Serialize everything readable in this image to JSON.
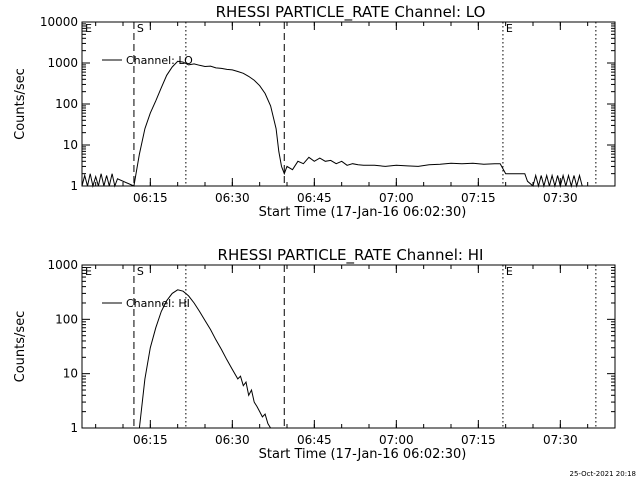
{
  "chart_data": [
    {
      "type": "line",
      "title": "RHESSI PARTICLE_RATE Channel: LO",
      "xlabel": "Start Time (17-Jan-16 06:02:30)",
      "ylabel": "Counts/sec",
      "y_scale": "log",
      "ylim": [
        1,
        10000
      ],
      "xlim": [
        "06:02:30",
        "07:40:00"
      ],
      "x_ticks": [
        "06:15",
        "06:30",
        "06:45",
        "07:00",
        "07:15",
        "07:30"
      ],
      "y_ticks": [
        "1",
        "10",
        "100",
        "1000",
        "10000"
      ],
      "legend": {
        "label": "Channel: LO",
        "placement": "top-left"
      },
      "markers": [
        {
          "label": "S",
          "time": "06:12:00",
          "style": "dashed"
        },
        {
          "label": "",
          "time": "06:21:30",
          "style": "dotted"
        },
        {
          "label": "",
          "time": "06:39:30",
          "style": "dashed"
        },
        {
          "label": "E",
          "time": "07:19:30",
          "style": "dotted"
        },
        {
          "label": "",
          "time": "07:36:30",
          "style": "dotted"
        },
        {
          "label": "E",
          "time": "06:02:30",
          "style": "none"
        }
      ],
      "series": [
        {
          "name": "Channel: LO",
          "points": [
            [
              "06:02:30",
              1
            ],
            [
              "06:03:00",
              1.8
            ],
            [
              "06:03:30",
              1
            ],
            [
              "06:04:00",
              2
            ],
            [
              "06:04:30",
              1
            ],
            [
              "06:05:00",
              1.7
            ],
            [
              "06:05:30",
              1
            ],
            [
              "06:06:00",
              2
            ],
            [
              "06:06:30",
              1
            ],
            [
              "06:07:00",
              1.8
            ],
            [
              "06:07:30",
              1
            ],
            [
              "06:08:00",
              2
            ],
            [
              "06:08:30",
              1
            ],
            [
              "06:09:00",
              1.5
            ],
            [
              "06:12:00",
              1
            ],
            [
              "06:13:00",
              6
            ],
            [
              "06:14:00",
              25
            ],
            [
              "06:15:00",
              60
            ],
            [
              "06:16:00",
              120
            ],
            [
              "06:17:00",
              250
            ],
            [
              "06:18:00",
              500
            ],
            [
              "06:19:00",
              800
            ],
            [
              "06:20:00",
              1100
            ],
            [
              "06:21:00",
              1050
            ],
            [
              "06:22:00",
              900
            ],
            [
              "06:23:00",
              950
            ],
            [
              "06:24:00",
              880
            ],
            [
              "06:25:00",
              820
            ],
            [
              "06:26:00",
              840
            ],
            [
              "06:27:00",
              760
            ],
            [
              "06:28:00",
              740
            ],
            [
              "06:29:00",
              700
            ],
            [
              "06:30:00",
              680
            ],
            [
              "06:31:00",
              620
            ],
            [
              "06:32:00",
              560
            ],
            [
              "06:33:00",
              470
            ],
            [
              "06:34:00",
              380
            ],
            [
              "06:35:00",
              280
            ],
            [
              "06:36:00",
              180
            ],
            [
              "06:37:00",
              90
            ],
            [
              "06:38:00",
              25
            ],
            [
              "06:38:30",
              7
            ],
            [
              "06:39:00",
              3
            ],
            [
              "06:39:30",
              2
            ],
            [
              "06:40:00",
              3
            ],
            [
              "06:41:00",
              2.5
            ],
            [
              "06:42:00",
              4
            ],
            [
              "06:43:00",
              3.5
            ],
            [
              "06:44:00",
              5
            ],
            [
              "06:45:00",
              4
            ],
            [
              "06:46:00",
              4.8
            ],
            [
              "06:47:00",
              4
            ],
            [
              "06:48:00",
              4.2
            ],
            [
              "06:49:00",
              3.5
            ],
            [
              "06:50:00",
              4
            ],
            [
              "06:51:00",
              3.2
            ],
            [
              "06:52:00",
              3.5
            ],
            [
              "06:53:00",
              3.3
            ],
            [
              "06:54:00",
              3.2
            ],
            [
              "06:56:00",
              3.2
            ],
            [
              "06:58:00",
              3
            ],
            [
              "07:00:00",
              3.2
            ],
            [
              "07:02:00",
              3.1
            ],
            [
              "07:04:00",
              3
            ],
            [
              "07:06:00",
              3.3
            ],
            [
              "07:08:00",
              3.4
            ],
            [
              "07:10:00",
              3.6
            ],
            [
              "07:12:00",
              3.5
            ],
            [
              "07:14:00",
              3.6
            ],
            [
              "07:16:00",
              3.4
            ],
            [
              "07:18:00",
              3.5
            ],
            [
              "07:19:00",
              3.5
            ],
            [
              "07:20:00",
              2
            ],
            [
              "07:22:00",
              2
            ],
            [
              "07:23:30",
              2
            ],
            [
              "07:24:00",
              1.3
            ],
            [
              "07:25:00",
              1
            ],
            [
              "07:25:30",
              1.8
            ],
            [
              "07:26:00",
              1
            ],
            [
              "07:26:30",
              1.8
            ],
            [
              "07:27:00",
              1
            ],
            [
              "07:27:30",
              1.8
            ],
            [
              "07:28:00",
              1
            ],
            [
              "07:28:30",
              1.8
            ],
            [
              "07:29:00",
              1
            ],
            [
              "07:29:30",
              1.8
            ],
            [
              "07:30:00",
              1
            ],
            [
              "07:30:30",
              1.8
            ],
            [
              "07:31:00",
              1
            ],
            [
              "07:31:30",
              1.8
            ],
            [
              "07:32:00",
              1
            ],
            [
              "07:32:30",
              1.8
            ],
            [
              "07:33:00",
              1
            ],
            [
              "07:33:30",
              1.8
            ],
            [
              "07:34:00",
              1
            ]
          ]
        }
      ]
    },
    {
      "type": "line",
      "title": "RHESSI PARTICLE_RATE Channel: HI",
      "xlabel": "Start Time (17-Jan-16 06:02:30)",
      "ylabel": "Counts/sec",
      "y_scale": "log",
      "ylim": [
        1,
        1000
      ],
      "xlim": [
        "06:02:30",
        "07:40:00"
      ],
      "x_ticks": [
        "06:15",
        "06:30",
        "06:45",
        "07:00",
        "07:15",
        "07:30"
      ],
      "y_ticks": [
        "1",
        "10",
        "100",
        "1000"
      ],
      "legend": {
        "label": "Channel: HI",
        "placement": "top-left"
      },
      "markers": [
        {
          "label": "S",
          "time": "06:12:00",
          "style": "dashed"
        },
        {
          "label": "",
          "time": "06:21:30",
          "style": "dotted"
        },
        {
          "label": "",
          "time": "06:39:30",
          "style": "dashed"
        },
        {
          "label": "E",
          "time": "07:19:30",
          "style": "dotted"
        },
        {
          "label": "",
          "time": "07:36:30",
          "style": "dotted"
        },
        {
          "label": "E",
          "time": "06:02:30",
          "style": "none"
        }
      ],
      "series": [
        {
          "name": "Channel: HI",
          "points": [
            [
              "06:13:00",
              1
            ],
            [
              "06:14:00",
              8
            ],
            [
              "06:15:00",
              30
            ],
            [
              "06:16:00",
              70
            ],
            [
              "06:17:00",
              140
            ],
            [
              "06:18:00",
              220
            ],
            [
              "06:19:00",
              300
            ],
            [
              "06:20:00",
              350
            ],
            [
              "06:21:00",
              330
            ],
            [
              "06:22:00",
              270
            ],
            [
              "06:23:00",
              200
            ],
            [
              "06:24:00",
              140
            ],
            [
              "06:25:00",
              95
            ],
            [
              "06:26:00",
              65
            ],
            [
              "06:27:00",
              42
            ],
            [
              "06:28:00",
              28
            ],
            [
              "06:29:00",
              18
            ],
            [
              "06:30:00",
              12
            ],
            [
              "06:31:00",
              8
            ],
            [
              "06:31:30",
              9
            ],
            [
              "06:32:00",
              6
            ],
            [
              "06:32:30",
              7
            ],
            [
              "06:33:00",
              4
            ],
            [
              "06:33:30",
              5
            ],
            [
              "06:34:00",
              3
            ],
            [
              "06:34:30",
              2.5
            ],
            [
              "06:35:00",
              2
            ],
            [
              "06:35:30",
              1.6
            ],
            [
              "06:36:00",
              1.8
            ],
            [
              "06:36:30",
              1.2
            ],
            [
              "06:37:00",
              1
            ]
          ]
        }
      ]
    }
  ],
  "footer": {
    "stamp": "25-Oct-2021 20:18"
  }
}
